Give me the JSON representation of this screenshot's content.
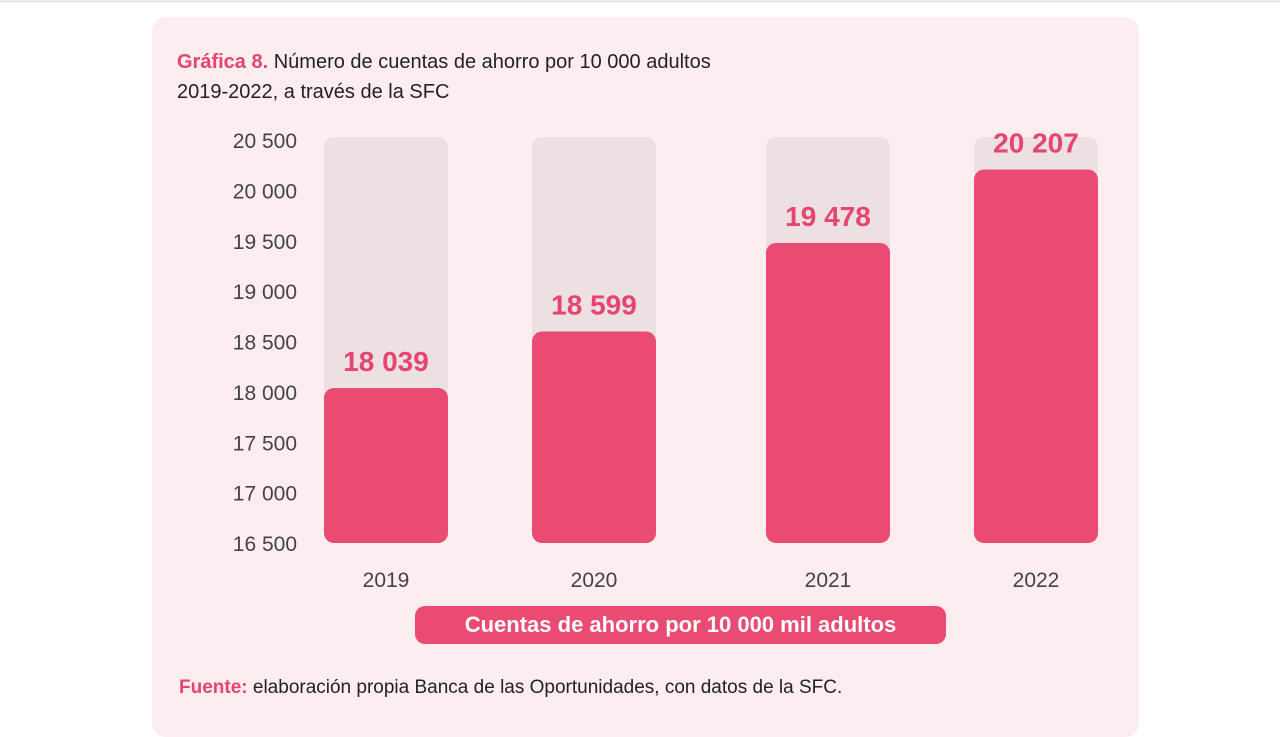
{
  "title": {
    "label": "Gráfica 8.",
    "text": "Número de cuentas de ahorro por 10 000 adultos",
    "line2": "2019-2022, a través de la SFC"
  },
  "chart_data": {
    "type": "bar",
    "categories": [
      "2019",
      "2020",
      "2021",
      "2022"
    ],
    "series": [
      {
        "name": "Cuentas de ahorro por 10 000 mil adultos",
        "values": [
          18039,
          18599,
          19478,
          20207
        ]
      }
    ],
    "value_labels": [
      "18 039",
      "18 599",
      "19 478",
      "20 207"
    ],
    "yticks": [
      "16 500",
      "17 000",
      "17 500",
      "18 000",
      "18 500",
      "19 000",
      "19 500",
      "20 000",
      "20 500"
    ],
    "ylim": [
      16500,
      20500
    ],
    "grid": false,
    "legend": "bottom",
    "colors": {
      "bar": "#e94b72",
      "bar_track": "#ece0e2",
      "label": "#e5456f"
    }
  },
  "legend_label": "Cuentas de ahorro por 10 000 mil adultos",
  "source": {
    "label": "Fuente:",
    "text": "elaboración propia Banca de las Oportunidades, con datos de la SFC."
  }
}
